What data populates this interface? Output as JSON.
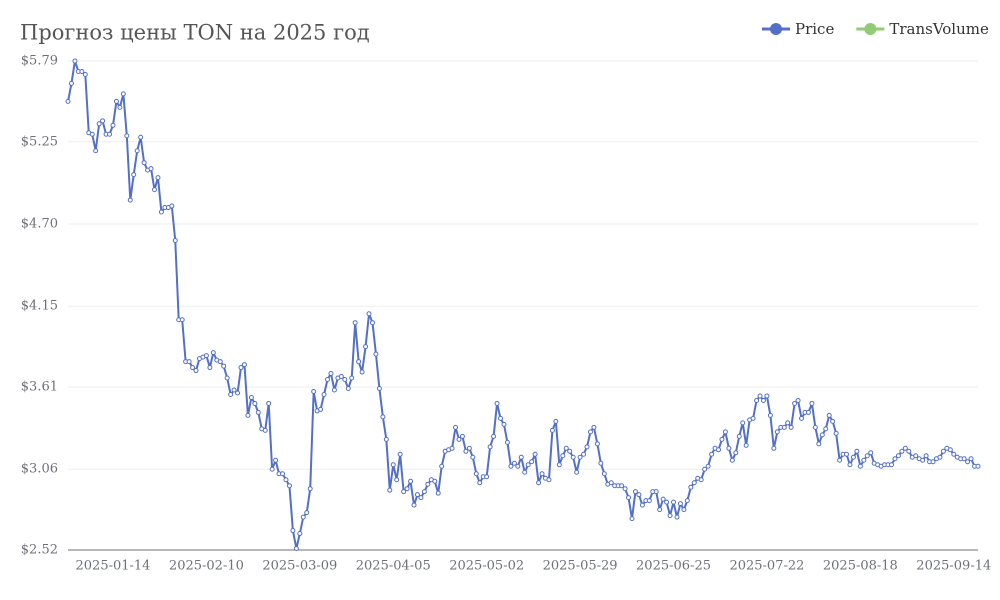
{
  "chart_data": {
    "type": "line",
    "title": "Прогноз цены TON на 2025 год",
    "legend": [
      {
        "name": "Price",
        "color": "#5470c6"
      },
      {
        "name": "TransVolume",
        "color": "#91cc75"
      }
    ],
    "categories": [
      null,
      null,
      null,
      null,
      null,
      null,
      null,
      null,
      null,
      null,
      null,
      null,
      null,
      "2025-01-14",
      null,
      null,
      null,
      null,
      null,
      null,
      null,
      null,
      null,
      null,
      null,
      null,
      null,
      null,
      null,
      null,
      null,
      null,
      null,
      null,
      null,
      null,
      null,
      null,
      null,
      null,
      "2025-02-10",
      null,
      null,
      null,
      null,
      null,
      null,
      null,
      null,
      null,
      null,
      null,
      null,
      null,
      null,
      null,
      null,
      null,
      null,
      null,
      null,
      null,
      null,
      null,
      null,
      null,
      null,
      "2025-03-09",
      null,
      null,
      null,
      null,
      null,
      null,
      null,
      null,
      null,
      null,
      null,
      null,
      null,
      null,
      null,
      null,
      null,
      null,
      null,
      null,
      null,
      null,
      null,
      null,
      null,
      null,
      "2025-04-05",
      null,
      null,
      null,
      null,
      null,
      null,
      null,
      null,
      null,
      null,
      null,
      null,
      null,
      null,
      null,
      null,
      null,
      null,
      null,
      null,
      null,
      null,
      null,
      null,
      null,
      null,
      "2025-05-02",
      null,
      null,
      null,
      null,
      null,
      null,
      null,
      null,
      null,
      null,
      null,
      null,
      null,
      null,
      null,
      null,
      null,
      null,
      null,
      null,
      null,
      null,
      null,
      null,
      null,
      null,
      "2025-05-29",
      null,
      null,
      null,
      null,
      null,
      null,
      null,
      null,
      null,
      null,
      null,
      null,
      null,
      null,
      null,
      null,
      null,
      null,
      null,
      null,
      null,
      null,
      null,
      null,
      null,
      null,
      "2025-06-25",
      null,
      null,
      null,
      null,
      null,
      null,
      null,
      null,
      null,
      null,
      null,
      null,
      null,
      null,
      null,
      null,
      null,
      null,
      null,
      null,
      null,
      null,
      null,
      null,
      null,
      null,
      "2025-07-22",
      null,
      null,
      null,
      null,
      null,
      null,
      null,
      null,
      null,
      null,
      null,
      null,
      null,
      null,
      null,
      null,
      null,
      null,
      null,
      null,
      null,
      null,
      null,
      null,
      null,
      null,
      "2025-08-18",
      null,
      null,
      null,
      null,
      null,
      null,
      null,
      null,
      null,
      null,
      null,
      null,
      null,
      null,
      null,
      null,
      null,
      null,
      null,
      null,
      null,
      null,
      null,
      null,
      null,
      null,
      "2025-09-14",
      null,
      null,
      null,
      null,
      null,
      null,
      null
    ],
    "series": [
      {
        "name": "Price",
        "color": "#5470c6",
        "values": [
          5.52,
          5.64,
          5.79,
          5.72,
          5.72,
          5.7,
          5.31,
          5.3,
          5.19,
          5.37,
          5.39,
          5.3,
          5.3,
          5.36,
          5.52,
          5.48,
          5.57,
          5.29,
          4.86,
          5.03,
          5.19,
          5.28,
          5.11,
          5.06,
          5.07,
          4.93,
          5.01,
          4.78,
          4.81,
          4.81,
          4.82,
          4.59,
          4.06,
          4.06,
          3.78,
          3.78,
          3.74,
          3.72,
          3.8,
          3.81,
          3.82,
          3.74,
          3.84,
          3.79,
          3.78,
          3.75,
          3.67,
          3.56,
          3.59,
          3.57,
          3.74,
          3.76,
          3.42,
          3.54,
          3.5,
          3.44,
          3.33,
          3.32,
          3.5,
          3.06,
          3.12,
          3.03,
          3.03,
          2.99,
          2.95,
          2.65,
          2.53,
          2.63,
          2.74,
          2.77,
          2.93,
          3.58,
          3.45,
          3.46,
          3.56,
          3.66,
          3.7,
          3.59,
          3.67,
          3.68,
          3.66,
          3.6,
          3.67,
          4.04,
          3.78,
          3.71,
          3.88,
          4.1,
          4.04,
          3.83,
          3.6,
          3.41,
          3.26,
          2.92,
          3.09,
          2.99,
          3.16,
          2.91,
          2.93,
          2.98,
          2.82,
          2.89,
          2.87,
          2.91,
          2.96,
          2.99,
          2.98,
          2.9,
          3.08,
          3.18,
          3.19,
          3.2,
          3.34,
          3.26,
          3.28,
          3.18,
          3.2,
          3.14,
          3.03,
          2.97,
          3.01,
          3.01,
          3.21,
          3.28,
          3.5,
          3.4,
          3.36,
          3.24,
          3.08,
          3.1,
          3.08,
          3.14,
          3.04,
          3.09,
          3.11,
          3.16,
          2.97,
          3.03,
          3.0,
          2.99,
          3.32,
          3.38,
          3.09,
          3.15,
          3.2,
          3.18,
          3.14,
          3.04,
          3.14,
          3.16,
          3.21,
          3.31,
          3.34,
          3.23,
          3.1,
          3.03,
          2.96,
          2.97,
          2.95,
          2.95,
          2.95,
          2.93,
          2.87,
          2.73,
          2.91,
          2.89,
          2.82,
          2.85,
          2.85,
          2.91,
          2.91,
          2.79,
          2.86,
          2.84,
          2.75,
          2.84,
          2.74,
          2.83,
          2.79,
          2.85,
          2.94,
          2.97,
          3.0,
          2.99,
          3.06,
          3.08,
          3.16,
          3.2,
          3.19,
          3.26,
          3.31,
          3.2,
          3.12,
          3.17,
          3.28,
          3.37,
          3.22,
          3.39,
          3.4,
          3.52,
          3.55,
          3.52,
          3.55,
          3.42,
          3.2,
          3.31,
          3.34,
          3.34,
          3.37,
          3.34,
          3.5,
          3.52,
          3.4,
          3.44,
          3.44,
          3.5,
          3.34,
          3.23,
          3.29,
          3.33,
          3.42,
          3.38,
          3.3,
          3.12,
          3.16,
          3.16,
          3.09,
          3.14,
          3.18,
          3.08,
          3.12,
          3.15,
          3.17,
          3.1,
          3.09,
          3.08,
          3.09,
          3.09,
          3.09,
          3.13,
          3.15,
          3.18,
          3.2,
          3.18,
          3.14,
          3.15,
          3.13,
          3.12,
          3.15,
          3.11,
          3.11,
          3.13,
          3.14,
          3.18,
          3.2,
          3.19,
          3.16,
          3.14,
          3.13,
          3.13,
          3.11,
          3.13,
          3.08,
          3.08
        ]
      }
    ],
    "ylim": [
      2.52,
      5.79
    ],
    "yticks": [
      {
        "value": 2.52,
        "label": "$2.52"
      },
      {
        "value": 3.06,
        "label": "$3.06"
      },
      {
        "value": 3.61,
        "label": "$3.61"
      },
      {
        "value": 4.15,
        "label": "$4.15"
      },
      {
        "value": 4.7,
        "label": "$4.70"
      },
      {
        "value": 5.25,
        "label": "$5.25"
      },
      {
        "value": 5.79,
        "label": "$5.79"
      }
    ],
    "grid": true
  }
}
